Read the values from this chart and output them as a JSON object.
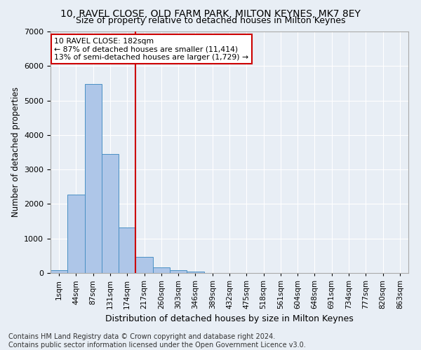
{
  "title": "10, RAVEL CLOSE, OLD FARM PARK, MILTON KEYNES, MK7 8EY",
  "subtitle": "Size of property relative to detached houses in Milton Keynes",
  "xlabel": "Distribution of detached houses by size in Milton Keynes",
  "ylabel": "Number of detached properties",
  "categories": [
    "1sqm",
    "44sqm",
    "87sqm",
    "131sqm",
    "174sqm",
    "217sqm",
    "260sqm",
    "303sqm",
    "346sqm",
    "389sqm",
    "432sqm",
    "475sqm",
    "518sqm",
    "561sqm",
    "604sqm",
    "648sqm",
    "691sqm",
    "734sqm",
    "777sqm",
    "820sqm",
    "863sqm"
  ],
  "bar_values": [
    80,
    2280,
    5480,
    3440,
    1310,
    470,
    155,
    85,
    45,
    0,
    0,
    0,
    0,
    0,
    0,
    0,
    0,
    0,
    0,
    0,
    0
  ],
  "bar_color": "#aec6e8",
  "bar_edgecolor": "#4a90c4",
  "background_color": "#e8eef5",
  "grid_color": "#ffffff",
  "vline_color": "#cc0000",
  "annotation_text": "10 RAVEL CLOSE: 182sqm\n← 87% of detached houses are smaller (11,414)\n13% of semi-detached houses are larger (1,729) →",
  "annotation_box_color": "#ffffff",
  "annotation_edge_color": "#cc0000",
  "ylim": [
    0,
    7000
  ],
  "yticks": [
    0,
    1000,
    2000,
    3000,
    4000,
    5000,
    6000,
    7000
  ],
  "footer": "Contains HM Land Registry data © Crown copyright and database right 2024.\nContains public sector information licensed under the Open Government Licence v3.0.",
  "title_fontsize": 10,
  "subtitle_fontsize": 9,
  "footer_fontsize": 7
}
